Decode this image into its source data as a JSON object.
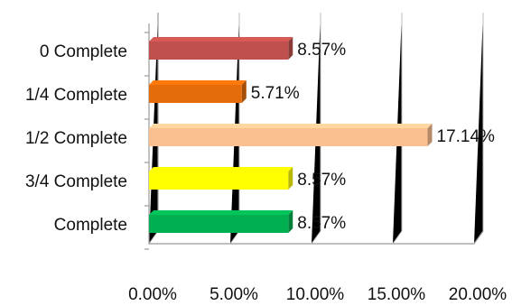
{
  "chart_data": {
    "type": "bar",
    "orientation": "horizontal",
    "categories": [
      "0 Complete",
      "1/4 Complete",
      "1/2 Complete",
      "3/4 Complete",
      "Complete"
    ],
    "values": [
      8.57,
      5.71,
      17.14,
      8.57,
      8.57
    ],
    "value_labels": [
      "8.57%",
      "5.71%",
      "17.14%",
      "8.57%",
      "8.57%"
    ],
    "colors": [
      "#c0504d",
      "#e46c0a",
      "#fac090",
      "#ffff00",
      "#00b050"
    ],
    "xlim": [
      0,
      20
    ],
    "xticks": [
      0,
      5,
      10,
      15,
      20
    ],
    "xtick_labels": [
      "0.00%",
      "5.00%",
      "10.00%",
      "15.00%",
      "20.00%"
    ],
    "grid": true,
    "legend": "none",
    "title": "",
    "xlabel": "",
    "ylabel": ""
  }
}
